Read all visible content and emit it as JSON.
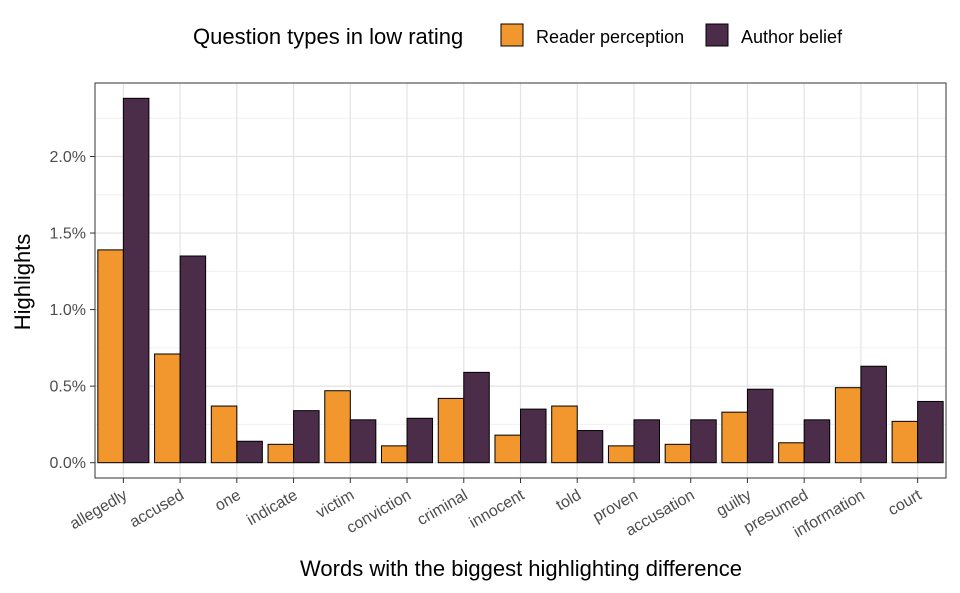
{
  "chart_data": {
    "type": "bar",
    "title": "",
    "xlabel": "Words with the biggest highlighting difference",
    "ylabel": "Highlights",
    "ylim": [
      -0.1,
      2.48
    ],
    "yticks": [
      0.0,
      0.5,
      1.0,
      1.5,
      2.0
    ],
    "ytick_labels": [
      "0.0%",
      "0.5%",
      "1.0%",
      "1.5%",
      "2.0%"
    ],
    "grid": true,
    "legend": {
      "title": "Question types in low rating",
      "placement": "top"
    },
    "categories": [
      "allegedly",
      "accused",
      "one",
      "indicate",
      "victim",
      "conviction",
      "criminal",
      "innocent",
      "told",
      "proven",
      "accusation",
      "guilty",
      "presumed",
      "information",
      "court"
    ],
    "series": [
      {
        "name": "Reader perception",
        "color": "#F2972D",
        "values": [
          1.39,
          0.71,
          0.37,
          0.12,
          0.47,
          0.11,
          0.42,
          0.18,
          0.37,
          0.11,
          0.12,
          0.33,
          0.13,
          0.49,
          0.27
        ]
      },
      {
        "name": "Author belief",
        "color": "#4B2D49",
        "values": [
          2.38,
          1.35,
          0.14,
          0.34,
          0.28,
          0.29,
          0.59,
          0.35,
          0.21,
          0.28,
          0.28,
          0.48,
          0.28,
          0.63,
          0.4
        ]
      }
    ]
  }
}
